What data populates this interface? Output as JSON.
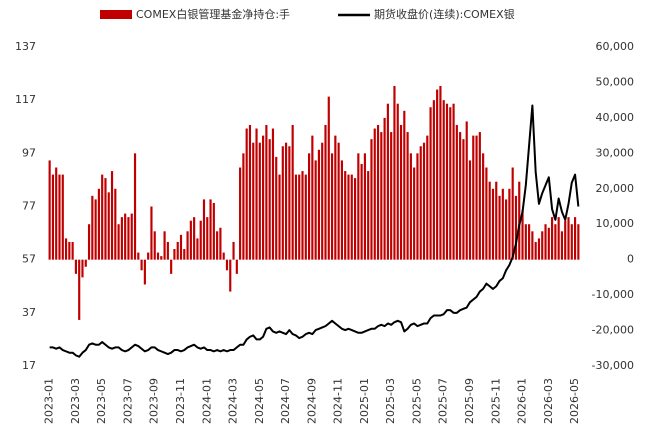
{
  "chart_data": {
    "type": "bar-line",
    "legend": "top",
    "categories": [
      "2023-01",
      null,
      null,
      null,
      null,
      null,
      null,
      null,
      "2023-03",
      null,
      null,
      null,
      null,
      null,
      null,
      null,
      "2023-05",
      null,
      null,
      null,
      null,
      null,
      null,
      null,
      "2023-07",
      null,
      null,
      null,
      null,
      null,
      null,
      null,
      "2023-09",
      null,
      null,
      null,
      null,
      null,
      null,
      null,
      "2023-11",
      null,
      null,
      null,
      null,
      null,
      null,
      null,
      "2024-01",
      null,
      null,
      null,
      null,
      null,
      null,
      null,
      "2024-03",
      null,
      null,
      null,
      null,
      null,
      null,
      null,
      "2024-05",
      null,
      null,
      null,
      null,
      null,
      null,
      null,
      "2024-07",
      null,
      null,
      null,
      null,
      null,
      null,
      null,
      "2024-09",
      null,
      null,
      null,
      null,
      null,
      null,
      null,
      "2024-11",
      null,
      null,
      null,
      null,
      null,
      null,
      null,
      "2025-01",
      null,
      null,
      null,
      null,
      null,
      null,
      null,
      "2025-03",
      null,
      null,
      null,
      null,
      null,
      null,
      null,
      "2025-05",
      null,
      null,
      null,
      null,
      null,
      null,
      null,
      "2025-07",
      null,
      null,
      null,
      null,
      null,
      null,
      null,
      "2025-09",
      null,
      null,
      null,
      null,
      null,
      null,
      null,
      "2025-11",
      null,
      null,
      null,
      null,
      null,
      null,
      null,
      "2026-01",
      null,
      null,
      null,
      null,
      null,
      null,
      null,
      "2026-03",
      null,
      null,
      null,
      null,
      null,
      null,
      null,
      "2026-05",
      null
    ],
    "series": [
      {
        "name": "COMEX白银管理基金净持仓:手",
        "type": "bar",
        "axis": "y2",
        "color": "#c00000",
        "values": [
          28000,
          24000,
          26000,
          24000,
          24000,
          6000,
          5000,
          5000,
          -4000,
          -17000,
          -5000,
          -2000,
          10000,
          18000,
          17000,
          20000,
          24000,
          23000,
          19000,
          25000,
          20000,
          10000,
          12000,
          13000,
          12000,
          13000,
          30000,
          2000,
          -3000,
          -7000,
          2000,
          15000,
          8000,
          2000,
          1000,
          8000,
          5000,
          -4000,
          3000,
          5000,
          7000,
          3000,
          8000,
          11000,
          12000,
          6000,
          11000,
          17000,
          12000,
          17000,
          16000,
          8000,
          9000,
          2000,
          -3000,
          -9000,
          5000,
          -4000,
          26000,
          30000,
          37000,
          38000,
          33000,
          37000,
          33000,
          35000,
          38000,
          34000,
          37000,
          29000,
          24000,
          32000,
          33000,
          32000,
          38000,
          24000,
          24000,
          25000,
          24000,
          30000,
          35000,
          28000,
          31000,
          33000,
          38000,
          46000,
          30000,
          35000,
          33000,
          28000,
          25000,
          24000,
          24000,
          23000,
          30000,
          27000,
          30000,
          25000,
          34000,
          37000,
          38000,
          36000,
          40000,
          44000,
          36000,
          49000,
          44000,
          38000,
          42000,
          36000,
          30000,
          26000,
          30000,
          32000,
          33000,
          35000,
          43000,
          45000,
          48000,
          49000,
          45000,
          44000,
          43000,
          44000,
          38000,
          36000,
          34000,
          39000,
          28000,
          35000,
          35000,
          36000,
          30000,
          26000,
          22000,
          20000,
          22000,
          18000,
          20000,
          17000,
          20000,
          26000,
          18000,
          22000,
          14000,
          10000,
          10000,
          8000,
          5000,
          6000,
          8000,
          10000,
          9000,
          12000,
          10000,
          12000,
          8000,
          11000,
          12000,
          10000,
          12000,
          10000
        ]
      },
      {
        "name": "期货收盘价(连续):COMEX银",
        "type": "line",
        "axis": "y",
        "color": "#000000",
        "values": [
          24,
          24,
          23.5,
          24,
          23,
          22.5,
          22,
          22,
          21,
          20.5,
          22,
          23,
          25,
          25.5,
          25,
          25,
          26,
          25,
          24,
          23.5,
          24,
          24,
          23,
          22.5,
          23,
          24,
          25,
          24.5,
          23.5,
          22.5,
          23,
          24,
          24,
          23,
          22.5,
          22,
          21.5,
          22,
          23,
          23,
          22.5,
          23,
          24,
          24.5,
          25,
          24,
          23.5,
          24,
          23,
          23,
          22.5,
          23,
          22.5,
          23,
          22.5,
          23,
          23,
          24,
          25,
          25,
          27,
          28,
          28.5,
          27,
          27,
          28,
          31,
          31.5,
          30,
          29.5,
          30,
          29.5,
          29,
          30.5,
          29,
          28.5,
          27.5,
          28,
          29,
          29.5,
          29,
          30.5,
          31,
          31.5,
          32,
          33,
          34,
          33,
          32,
          31,
          30.5,
          31,
          30.5,
          30,
          29.5,
          29.5,
          30,
          30.5,
          31,
          31,
          32,
          32.5,
          32,
          33,
          32.5,
          33.5,
          34,
          33.5,
          30,
          31,
          32.5,
          33,
          32,
          32.5,
          33,
          33,
          35,
          36,
          36,
          36,
          36.5,
          38,
          38,
          37,
          37,
          38,
          38.5,
          39,
          41,
          42,
          43,
          45,
          46,
          48,
          47,
          46,
          47,
          49,
          50,
          53,
          55,
          58,
          63,
          70,
          75,
          85,
          100,
          115,
          90,
          78,
          82,
          85,
          88,
          76,
          72,
          80,
          75,
          72,
          78,
          86,
          89,
          77
        ]
      }
    ],
    "ylim": [
      17,
      137
    ],
    "yticks": [
      17,
      37,
      57,
      77,
      97,
      117,
      137
    ],
    "y2lim": [
      -30000,
      60000
    ],
    "y2ticks": [
      {
        "value": -30000,
        "label": "-30,000"
      },
      {
        "value": -20000,
        "label": "-20,000"
      },
      {
        "value": -10000,
        "label": "-10,000"
      },
      0,
      {
        "value": 10000,
        "label": "10,000"
      },
      {
        "value": 20000,
        "label": "20,000"
      },
      {
        "value": 30000,
        "label": "30,000"
      },
      {
        "value": 40000,
        "label": "40,000"
      },
      {
        "value": 50000,
        "label": "50,000"
      },
      {
        "value": 60000,
        "label": "60,000"
      }
    ]
  }
}
